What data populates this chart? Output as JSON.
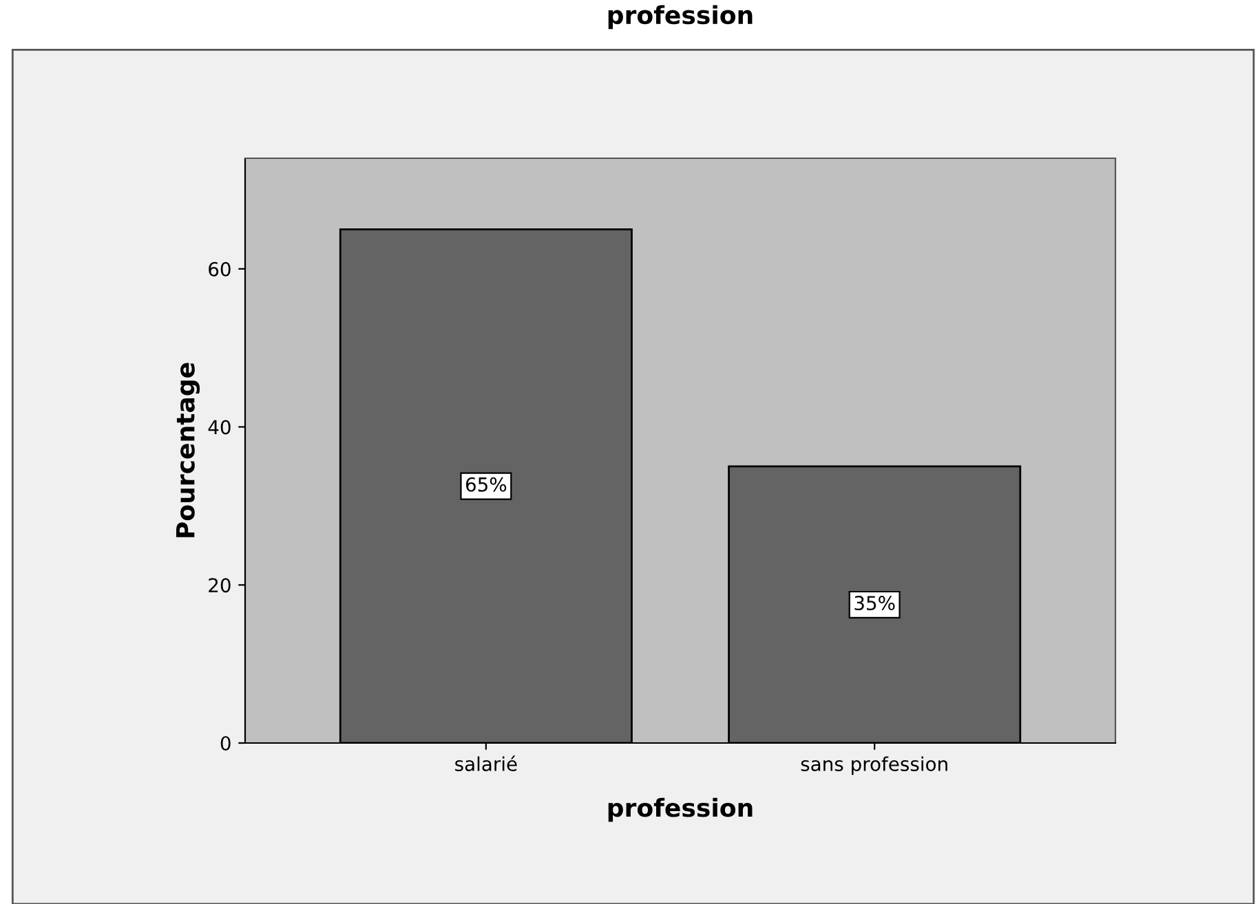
{
  "chart_data": {
    "type": "bar",
    "title": "profession",
    "xlabel": "profession",
    "ylabel": "Pourcentage",
    "categories": [
      "salarié",
      "sans profession"
    ],
    "values": [
      65,
      35
    ],
    "color": "#646464",
    "value_labels": [
      "65%",
      "35%"
    ],
    "ylim": [
      0,
      74
    ],
    "yticks": [
      0,
      20,
      40,
      60
    ],
    "grid": false,
    "legend": false
  }
}
